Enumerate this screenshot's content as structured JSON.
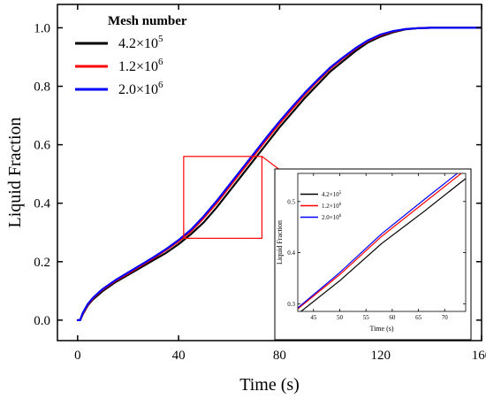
{
  "chart_data": [
    {
      "type": "line",
      "xlabel": "Time (s)",
      "ylabel": "Liquid Fraction",
      "xlim": [
        -8,
        160
      ],
      "ylim": [
        -0.07,
        1.08
      ],
      "x_ticks": [
        0,
        40,
        80,
        120,
        160
      ],
      "x_tick_labels": [
        "0",
        "40",
        "80",
        "120",
        "160"
      ],
      "y_ticks": [
        0.0,
        0.2,
        0.4,
        0.6,
        0.8,
        1.0
      ],
      "y_tick_labels": [
        "0.0",
        "0.2",
        "0.4",
        "0.6",
        "0.8",
        "1.0"
      ],
      "legend": {
        "title": "Mesh number",
        "position": "top-left",
        "entries": [
          {
            "base": "4.2×10",
            "exp": "5"
          },
          {
            "base": "1.2×10",
            "exp": "6"
          },
          {
            "base": "2.0×10",
            "exp": "6"
          }
        ]
      },
      "series": [
        {
          "name": "4.2×10^5",
          "color": "#000000",
          "x": [
            0,
            1,
            2,
            4,
            6,
            8,
            10,
            15,
            20,
            25,
            30,
            35,
            40,
            45,
            50,
            55,
            60,
            65,
            70,
            75,
            80,
            85,
            90,
            95,
            100,
            105,
            110,
            115,
            120,
            125,
            130,
            135,
            140,
            142,
            145,
            150,
            155,
            160
          ],
          "y": [
            0.0,
            0.0,
            0.02,
            0.05,
            0.07,
            0.085,
            0.1,
            0.13,
            0.155,
            0.18,
            0.205,
            0.23,
            0.26,
            0.295,
            0.335,
            0.385,
            0.44,
            0.495,
            0.55,
            0.605,
            0.66,
            0.71,
            0.76,
            0.805,
            0.85,
            0.885,
            0.92,
            0.95,
            0.97,
            0.985,
            0.995,
            0.999,
            1.0,
            1.0,
            1.0,
            1.0,
            1.0,
            1.0
          ]
        },
        {
          "name": "1.2×10^6",
          "color": "#ff0000",
          "x": [
            0,
            1,
            2,
            4,
            6,
            8,
            10,
            15,
            20,
            25,
            30,
            35,
            40,
            45,
            50,
            55,
            60,
            65,
            70,
            75,
            80,
            85,
            90,
            95,
            100,
            105,
            110,
            115,
            120,
            125,
            130,
            135,
            140,
            142,
            145,
            150,
            155,
            160
          ],
          "y": [
            0.0,
            0.0,
            0.022,
            0.053,
            0.074,
            0.09,
            0.105,
            0.135,
            0.16,
            0.186,
            0.212,
            0.24,
            0.27,
            0.305,
            0.35,
            0.4,
            0.455,
            0.51,
            0.565,
            0.62,
            0.673,
            0.723,
            0.772,
            0.817,
            0.86,
            0.895,
            0.928,
            0.955,
            0.975,
            0.988,
            0.996,
            0.999,
            1.0,
            1.0,
            1.0,
            1.0,
            1.0,
            1.0
          ]
        },
        {
          "name": "2.0×10^6",
          "color": "#0000ff",
          "x": [
            0,
            1,
            2,
            4,
            6,
            8,
            10,
            15,
            20,
            25,
            30,
            35,
            40,
            45,
            50,
            55,
            60,
            65,
            70,
            75,
            80,
            85,
            90,
            95,
            100,
            105,
            110,
            115,
            120,
            125,
            130,
            135,
            140,
            142,
            145,
            150,
            155,
            160
          ],
          "y": [
            0.0,
            0.0,
            0.024,
            0.055,
            0.076,
            0.092,
            0.107,
            0.137,
            0.163,
            0.189,
            0.215,
            0.243,
            0.274,
            0.31,
            0.356,
            0.407,
            0.462,
            0.517,
            0.572,
            0.627,
            0.68,
            0.73,
            0.778,
            0.822,
            0.864,
            0.898,
            0.93,
            0.957,
            0.977,
            0.989,
            0.996,
            0.999,
            1.0,
            1.0,
            1.0,
            1.0,
            1.0,
            1.0
          ]
        }
      ],
      "highlight_box": {
        "x": [
          42,
          73
        ],
        "y": [
          0.28,
          0.56
        ]
      }
    },
    {
      "type": "line",
      "role": "inset",
      "xlabel": "Time (s)",
      "ylabel": "Liquid Fraction",
      "xlim": [
        42,
        74
      ],
      "ylim": [
        0.285,
        0.555
      ],
      "x_ticks": [
        45,
        50,
        55,
        60,
        65,
        70
      ],
      "x_tick_labels": [
        "45",
        "50",
        "55",
        "60",
        "65",
        "70"
      ],
      "y_ticks": [
        0.3,
        0.4,
        0.5
      ],
      "y_tick_labels": [
        "0.3",
        "0.4",
        "0.5"
      ],
      "legend": {
        "position": "top-left",
        "entries": [
          {
            "base": "4.2×10",
            "exp": "5"
          },
          {
            "base": "1.2×10",
            "exp": "6"
          },
          {
            "base": "2.0×10",
            "exp": "6"
          }
        ]
      },
      "series": [
        {
          "name": "4.2×10^5",
          "color": "#000000",
          "x": [
            42,
            50,
            58,
            66,
            74
          ],
          "y": [
            0.28,
            0.345,
            0.418,
            0.48,
            0.545
          ]
        },
        {
          "name": "1.2×10^6",
          "color": "#ff0000",
          "x": [
            42,
            50,
            58,
            66,
            74
          ],
          "y": [
            0.29,
            0.357,
            0.432,
            0.497,
            0.562
          ]
        },
        {
          "name": "2.0×10^6",
          "color": "#0000ff",
          "x": [
            42,
            50,
            58,
            66,
            74
          ],
          "y": [
            0.292,
            0.361,
            0.437,
            0.503,
            0.568
          ]
        }
      ]
    }
  ]
}
